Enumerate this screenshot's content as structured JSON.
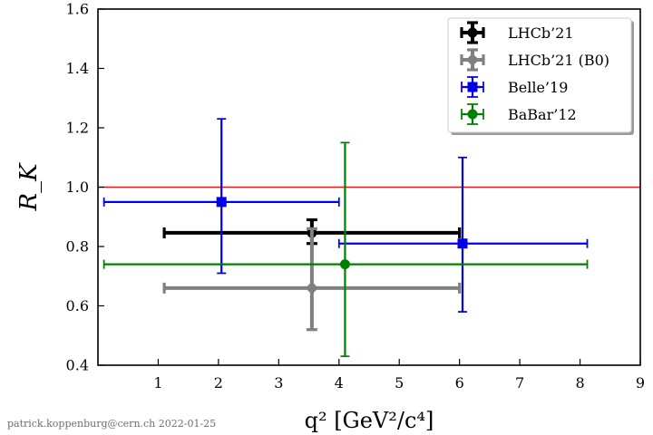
{
  "chart_data": {
    "type": "scatter",
    "title": "",
    "xlabel": "q² [GeV²/c⁴]",
    "ylabel": "R_K",
    "xlim": [
      0,
      9
    ],
    "ylim": [
      0.4,
      1.6
    ],
    "x_ticks": [
      1,
      2,
      3,
      4,
      5,
      6,
      7,
      8,
      9
    ],
    "x_tick_labels": [
      "1",
      "2",
      "3",
      "4",
      "5",
      "6",
      "7",
      "8",
      "9"
    ],
    "y_ticks": [
      0.4,
      0.6,
      0.8,
      1.0,
      1.2,
      1.4,
      1.6
    ],
    "y_tick_labels": [
      "0.4",
      "0.6",
      "0.8",
      "1.0",
      "1.2",
      "1.4",
      "1.6"
    ],
    "grid": false,
    "legend_position": "top-right",
    "reference_line": {
      "y": 1.0,
      "color": "#e41a1c"
    },
    "series": [
      {
        "name": "LHCb’21",
        "color": "#000000",
        "marker": "circle",
        "points": [
          {
            "x": 3.55,
            "y": 0.846,
            "xerr": [
              1.1,
              6.0
            ],
            "yerr": [
              0.81,
              0.89
            ]
          }
        ]
      },
      {
        "name": "LHCb’21 (B0)",
        "color": "#808080",
        "marker": "diamond",
        "points": [
          {
            "x": 3.55,
            "y": 0.66,
            "xerr": [
              1.1,
              6.0
            ],
            "yerr": [
              0.52,
              0.86
            ]
          }
        ]
      },
      {
        "name": "Belle’19",
        "color": "#0000ee",
        "marker": "square",
        "points": [
          {
            "x": 2.05,
            "y": 0.95,
            "xerr": [
              0.1,
              4.0
            ],
            "yerr": [
              0.71,
              1.23
            ]
          },
          {
            "x": 6.05,
            "y": 0.81,
            "xerr": [
              4.0,
              8.12
            ],
            "yerr": [
              0.58,
              1.1
            ]
          }
        ]
      },
      {
        "name": "BaBar’12",
        "color": "#008000",
        "marker": "circle",
        "points": [
          {
            "x": 4.1,
            "y": 0.74,
            "xerr": [
              0.1,
              8.12
            ],
            "yerr": [
              0.43,
              1.15
            ]
          }
        ]
      }
    ]
  },
  "credit": "patrick.koppenburg@cern.ch  2022-01-25"
}
